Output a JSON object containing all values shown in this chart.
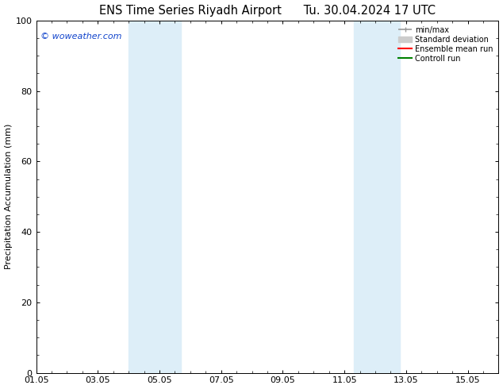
{
  "title": "ENS Time Series Riyadh Airport      Tu. 30.04.2024 17 UTC",
  "ylabel": "Precipitation Accumulation (mm)",
  "ylim": [
    0,
    100
  ],
  "yticks": [
    0,
    20,
    40,
    60,
    80,
    100
  ],
  "xtick_labels": [
    "01.05",
    "03.05",
    "05.05",
    "07.05",
    "09.05",
    "11.05",
    "13.05",
    "15.05"
  ],
  "xtick_positions": [
    1,
    3,
    5,
    7,
    9,
    11,
    13,
    15
  ],
  "xlim": [
    1,
    16
  ],
  "shaded_regions": [
    {
      "x_start": 4.0,
      "x_end": 5.7,
      "color": "#ddeef8"
    },
    {
      "x_start": 11.3,
      "x_end": 12.8,
      "color": "#ddeef8"
    }
  ],
  "watermark_text": "© woweather.com",
  "watermark_color": "#1144cc",
  "background_color": "#ffffff",
  "legend_items": [
    {
      "label": "min/max",
      "color": "#999999",
      "lw": 1.2
    },
    {
      "label": "Standard deviation",
      "color": "#cccccc",
      "lw": 7
    },
    {
      "label": "Ensemble mean run",
      "color": "#ff0000",
      "lw": 1.5
    },
    {
      "label": "Controll run",
      "color": "#008000",
      "lw": 1.5
    }
  ],
  "title_fontsize": 10.5,
  "ylabel_fontsize": 8,
  "tick_fontsize": 8,
  "watermark_fontsize": 8,
  "legend_fontsize": 7
}
